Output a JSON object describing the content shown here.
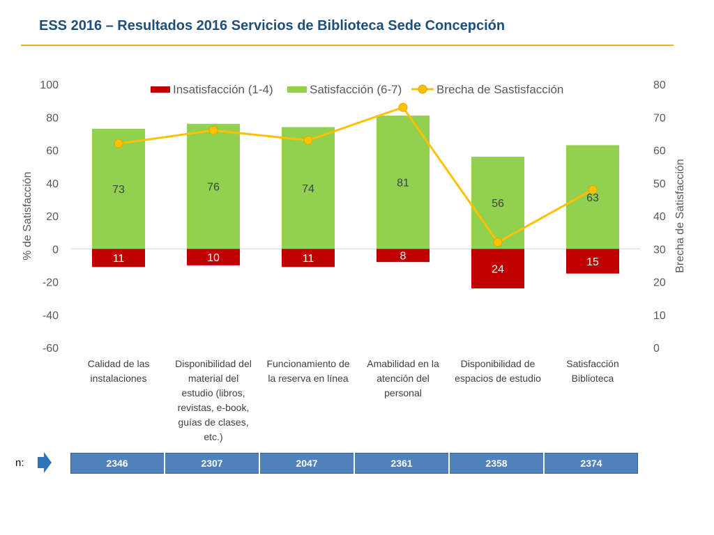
{
  "page": {
    "title": "ESS 2016 – Resultados 2016 Servicios de Biblioteca Sede Concepción"
  },
  "chart_data": {
    "type": "bar",
    "title": "ESS 2016 – Resultados 2016 Servicios de Biblioteca Sede Concepción",
    "categories": [
      "Calidad de las instalaciones",
      "Disponibilidad del material del estudio (libros, revistas, e-book, guías de clases, etc.)",
      "Funcionamiento de la reserva en línea",
      "Amabilidad en la atención del personal",
      "Disponibilidad de espacios de estudio",
      "Satisfacción Biblioteca"
    ],
    "category_lines": [
      [
        "Calidad de las",
        "instalaciones"
      ],
      [
        "Disponibilidad del",
        "material del",
        "estudio (libros,",
        "revistas, e-book,",
        "guías de clases,",
        "etc.)"
      ],
      [
        "Funcionamiento de",
        "la reserva en línea"
      ],
      [
        "Amabilidad en la",
        "atención del",
        "personal"
      ],
      [
        "Disponibilidad de",
        "espacios de estudio"
      ],
      [
        "Satisfacción",
        "Biblioteca"
      ]
    ],
    "series": [
      {
        "name": "Insatisfacción (1-4)",
        "values": [
          11,
          10,
          11,
          8,
          24,
          15
        ],
        "plotted_as": "negative",
        "axis": "left",
        "color": "#c00000",
        "label_color": "#ffffff"
      },
      {
        "name": "Satisfacción (6-7)",
        "values": [
          73,
          76,
          74,
          81,
          56,
          63
        ],
        "axis": "left",
        "color": "#92d050",
        "label_color": "#404040"
      },
      {
        "name": "Brecha de Sastisfacción",
        "values": [
          62,
          66,
          63,
          73,
          32,
          48
        ],
        "axis": "right",
        "type": "line",
        "color": "#ffc000",
        "marker_color": "#ffc000"
      }
    ],
    "ylabel": "% de Satisfacción",
    "y2label": "Brecha de Satisfacción",
    "ylim": [
      -60,
      100
    ],
    "y2lim": [
      0,
      80
    ],
    "yticks": [
      100,
      80,
      60,
      40,
      20,
      0,
      -20,
      -40,
      -60
    ],
    "y2ticks": [
      80,
      70,
      60,
      50,
      40,
      30,
      20,
      10,
      0
    ],
    "grid": false,
    "legend": "top"
  },
  "n_row": {
    "label": "n:",
    "values": [
      "2346",
      "2307",
      "2047",
      "2361",
      "2358",
      "2374"
    ]
  },
  "colors": {
    "title": "#1f4e79",
    "rule": "#e3b81a",
    "table": "#4f81bd",
    "arrow": "#2e75b6"
  }
}
